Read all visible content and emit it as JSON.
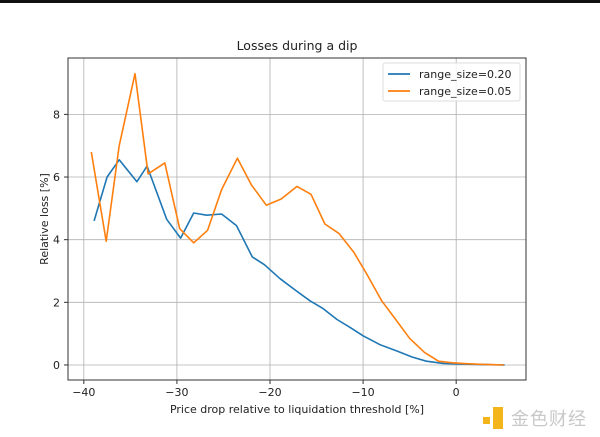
{
  "chart_data": {
    "type": "line",
    "title": "Losses during a dip",
    "xlabel": "Price drop relative to liquidation threshold [%]",
    "ylabel": "Relative loss [%]",
    "xlim": [
      -41.7,
      7.5
    ],
    "ylim": [
      -0.48,
      9.8
    ],
    "xticks": [
      -40,
      -30,
      -20,
      -10,
      0
    ],
    "xtick_labels": [
      "−40",
      "−30",
      "−20",
      "−10",
      "0"
    ],
    "yticks": [
      0,
      2,
      4,
      6,
      8
    ],
    "ytick_labels": [
      "0",
      "2",
      "4",
      "6",
      "8"
    ],
    "grid": true,
    "legend_position": "top-right",
    "series": [
      {
        "name": "range_size=0.20",
        "color": "#1f77b4",
        "x": [
          -38.9,
          -37.5,
          -36.2,
          -34.3,
          -33.2,
          -31.1,
          -29.6,
          -28.2,
          -26.8,
          -25.2,
          -23.6,
          -21.9,
          -20.6,
          -18.9,
          -17.1,
          -15.7,
          -14.3,
          -12.8,
          -11.4,
          -10,
          -8.2,
          -6.4,
          -4.7,
          -3.2,
          -1.4,
          0.1,
          1.8,
          3.6,
          5.2
        ],
        "y": [
          4.6,
          6.0,
          6.55,
          5.85,
          6.35,
          4.65,
          4.05,
          4.85,
          4.78,
          4.82,
          4.45,
          3.45,
          3.2,
          2.75,
          2.35,
          2.05,
          1.8,
          1.45,
          1.2,
          0.93,
          0.65,
          0.45,
          0.25,
          0.12,
          0.05,
          0.03,
          0.02,
          0.01,
          0.0
        ]
      },
      {
        "name": "range_size=0.05",
        "color": "#ff7f0e",
        "x": [
          -39.2,
          -37.6,
          -36.2,
          -34.5,
          -33.1,
          -31.3,
          -29.7,
          -28.2,
          -26.7,
          -25.2,
          -23.5,
          -22.0,
          -20.4,
          -18.8,
          -17.1,
          -15.6,
          -14.1,
          -12.6,
          -11.0,
          -9.6,
          -8.0,
          -6.5,
          -5.0,
          -3.4,
          -1.9,
          -0.4,
          1.1,
          2.6,
          4.0,
          5.1
        ],
        "y": [
          6.8,
          3.95,
          7.0,
          9.3,
          6.1,
          6.45,
          4.35,
          3.9,
          4.3,
          5.6,
          6.6,
          5.75,
          5.1,
          5.3,
          5.7,
          5.45,
          4.5,
          4.2,
          3.6,
          2.9,
          2.05,
          1.45,
          0.85,
          0.4,
          0.12,
          0.07,
          0.04,
          0.02,
          0.01,
          0.0
        ]
      }
    ]
  },
  "watermark": {
    "text": "金色财经",
    "logo_color": "#f3b51b"
  }
}
